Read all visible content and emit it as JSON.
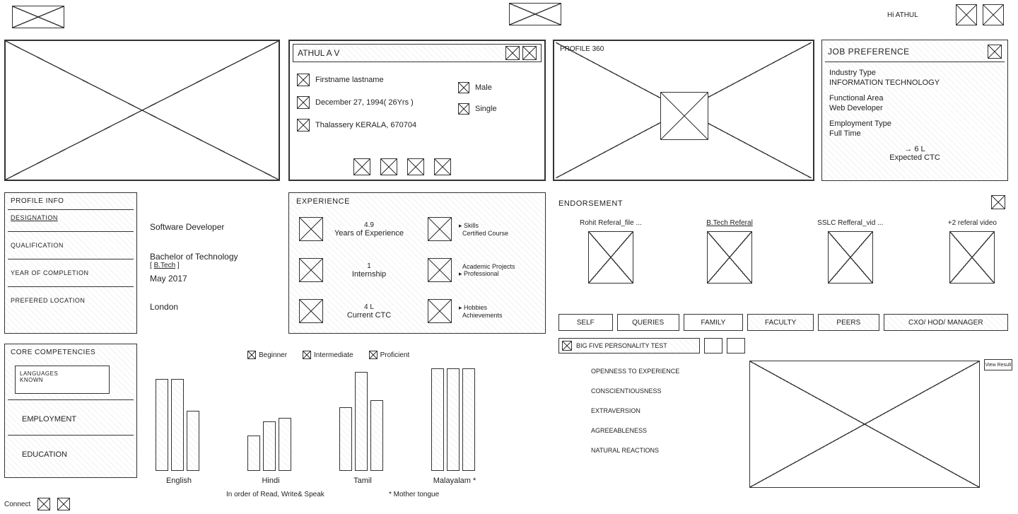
{
  "header": {
    "greeting": "Hi ATHUL"
  },
  "profileCard": {
    "titleName": "ATHUL A V",
    "fullname": "Firstname lastname",
    "dob": "December 27, 1994( 26Yrs )",
    "address": "Thalassery KERALA, 670704",
    "gender": "Male",
    "marital": "Single"
  },
  "profile360": {
    "title": "PROFILE 360"
  },
  "jobPref": {
    "title": "JOB PREFERENCE",
    "industryLabel": "Industry Type",
    "industry": "INFORMATION TECHNOLOGY",
    "funcLabel": "Functional Area",
    "func": "Web Developer",
    "empLabel": "Employment Type",
    "emp": "Full Time",
    "ctcArrow": "→ 6 L",
    "ctcLabel": "Expected CTC"
  },
  "profileInfo": {
    "title": "PROFILE INFO",
    "designationLabel": "DESIGNATION",
    "designation": "Software Developer",
    "qualLabel": "QUALIFICATION",
    "qual": "Bachelor of Technology",
    "qualSub": "[ B.Tech ]",
    "yearLabel": "YEAR OF COMPLETION",
    "year": "May 2017",
    "locLabel": "PREFERED LOCATION",
    "loc": "London"
  },
  "experience": {
    "title": "EXPERIENCE",
    "yearsNum": "4.9",
    "yearsLabel": "Years of Experience",
    "skills1": "Skills",
    "skills2": "Certified Course",
    "internNum": "1",
    "internLabel": "Internship",
    "acad1": "Academic Projects",
    "acad2": "Professional",
    "ctcNum": "4 L",
    "ctcLabel": "Current CTC",
    "hobbies1": "Hobbies",
    "hobbies2": "Achievements"
  },
  "endorsement": {
    "title": "ENDORSEMENT",
    "items": [
      "Rohit Referal_file ...",
      "B.Tech Referal",
      "SSLC Refferal_vid ...",
      "+2 referal video"
    ]
  },
  "coreComp": {
    "title": "CORE COMPETENCIES",
    "langLabel": "LANGUAGES\nKNOWN",
    "employment": "EMPLOYMENT",
    "education": "EDUCATION"
  },
  "langChart": {
    "legend": [
      "Beginner",
      "Intermediate",
      "Proficient"
    ],
    "note1": "In order of Read, Write& Speak",
    "note2": "* Mother tongue",
    "languages": [
      {
        "name": "English",
        "heights": [
          130,
          130,
          85
        ]
      },
      {
        "name": "Hindi",
        "heights": [
          50,
          70,
          75
        ]
      },
      {
        "name": "Tamil",
        "heights": [
          90,
          140,
          100
        ]
      },
      {
        "name": "Malayalam *",
        "heights": [
          145,
          145,
          145
        ]
      }
    ],
    "barWidth": 18,
    "barGap": 4,
    "groupWidth": 100
  },
  "tabs": {
    "items": [
      "SELF",
      "QUERIES",
      "FAMILY",
      "FACULTY",
      "PEERS",
      "CXO/ HOD/ MANAGER"
    ]
  },
  "bigfive": {
    "title": "BIG FIVE PERSONALITY TEST",
    "traits": [
      "OPENNESS TO EXPERIENCE",
      "CONSCIENTIOUSNESS",
      "EXTRAVERSION",
      "AGREEABLENESS",
      "NATURAL REACTIONS"
    ],
    "viewResult": "View Result"
  },
  "connect": "Connect"
}
